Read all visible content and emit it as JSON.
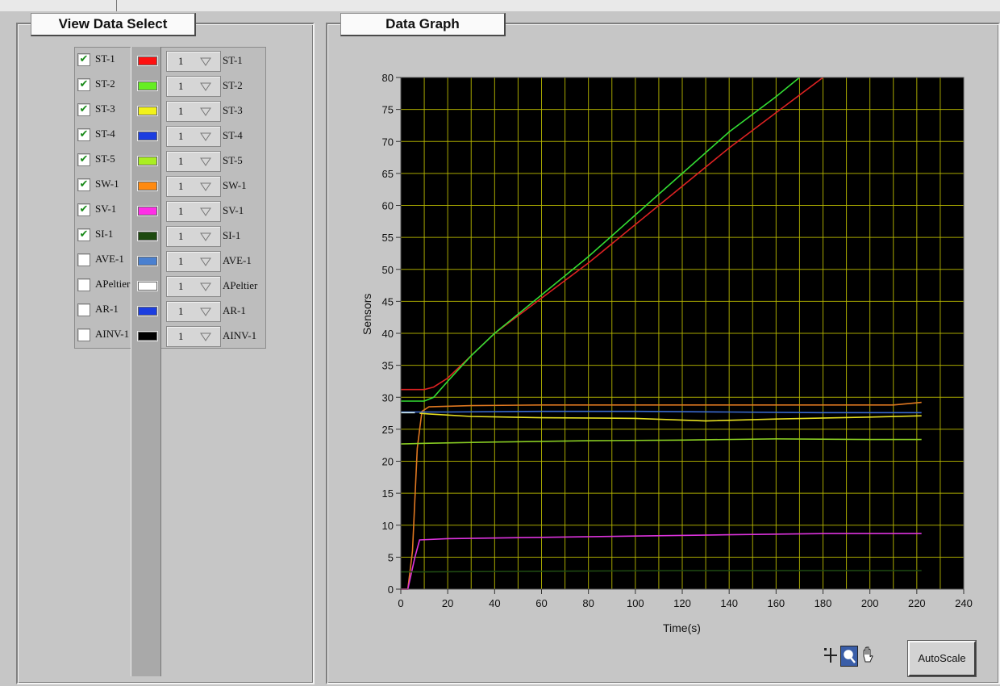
{
  "view_data_select": {
    "title": "View Data Select",
    "rows": [
      {
        "checked": true,
        "name": "ST-1",
        "color": "#ff1010",
        "multiplier": "1",
        "plot_label": "ST-1"
      },
      {
        "checked": true,
        "name": "ST-2",
        "color": "#66ee22",
        "multiplier": "1",
        "plot_label": "ST-2"
      },
      {
        "checked": true,
        "name": "ST-3",
        "color": "#f2f21a",
        "multiplier": "1",
        "plot_label": "ST-3"
      },
      {
        "checked": true,
        "name": "ST-4",
        "color": "#1c3ee0",
        "multiplier": "1",
        "plot_label": "ST-4"
      },
      {
        "checked": true,
        "name": "ST-5",
        "color": "#aaee22",
        "multiplier": "1",
        "plot_label": "ST-5"
      },
      {
        "checked": true,
        "name": "SW-1",
        "color": "#ff8a10",
        "multiplier": "1",
        "plot_label": "SW-1"
      },
      {
        "checked": true,
        "name": "SV-1",
        "color": "#ff2ee6",
        "multiplier": "1",
        "plot_label": "SV-1"
      },
      {
        "checked": true,
        "name": "SI-1",
        "color": "#1e4a10",
        "multiplier": "1",
        "plot_label": "SI-1"
      },
      {
        "checked": false,
        "name": "AVE-1",
        "color": "#4a80d0",
        "multiplier": "1",
        "plot_label": "AVE-1"
      },
      {
        "checked": false,
        "name": "APeltier",
        "color": "#ffffff",
        "multiplier": "1",
        "plot_label": "APeltier"
      },
      {
        "checked": false,
        "name": "AR-1",
        "color": "#1c3ee0",
        "multiplier": "1",
        "plot_label": "AR-1"
      },
      {
        "checked": false,
        "name": "AINV-1",
        "color": "#000000",
        "multiplier": "1",
        "plot_label": "AINV-1"
      }
    ]
  },
  "data_graph": {
    "title": "Data Graph",
    "autoscale_label": "AutoScale",
    "tools": [
      "cursor-move-icon",
      "zoom-icon",
      "pan-hand-icon"
    ]
  },
  "chart_data": {
    "type": "line",
    "xlabel": "Time(s)",
    "ylabel": "Sensors",
    "xlim": [
      0,
      240
    ],
    "ylim": [
      0,
      80
    ],
    "xticks": [
      0,
      20,
      40,
      60,
      80,
      100,
      120,
      140,
      160,
      180,
      200,
      220,
      240
    ],
    "yticks": [
      0,
      5,
      10,
      15,
      20,
      25,
      30,
      35,
      40,
      45,
      50,
      55,
      60,
      65,
      70,
      75,
      80
    ],
    "grid": true,
    "background": "#000000",
    "grid_color": "#b8b800",
    "series": [
      {
        "color": "#dd2222",
        "x": [
          0,
          10,
          14,
          20,
          30,
          40,
          60,
          80,
          100,
          120,
          140,
          160,
          180
        ],
        "y": [
          31.2,
          31.2,
          31.6,
          33,
          36.5,
          40,
          45.5,
          51,
          57,
          63,
          69,
          74.5,
          80
        ]
      },
      {
        "color": "#33dd33",
        "x": [
          0,
          10,
          14,
          20,
          30,
          40,
          60,
          80,
          100,
          120,
          140,
          160,
          170
        ],
        "y": [
          29.4,
          29.4,
          30,
          32.5,
          36.5,
          40,
          46,
          52,
          58.5,
          65,
          71.5,
          77,
          80
        ]
      },
      {
        "color": "#e07820",
        "x": [
          0,
          3,
          5,
          7,
          9,
          12,
          30,
          60,
          100,
          140,
          180,
          210,
          222
        ],
        "y": [
          0,
          0,
          6,
          22,
          27.8,
          28.5,
          28.7,
          28.8,
          28.8,
          28.8,
          28.8,
          28.8,
          29.2
        ]
      },
      {
        "color": "#3a6ad0",
        "x": [
          0,
          7,
          20,
          60,
          100,
          140,
          180,
          222
        ],
        "y": [
          27.7,
          27.7,
          27.7,
          27.8,
          27.8,
          27.7,
          27.6,
          27.6
        ]
      },
      {
        "color": "#e8e020",
        "x": [
          8,
          12,
          30,
          60,
          100,
          130,
          160,
          200,
          222
        ],
        "y": [
          27.5,
          27.4,
          27.0,
          26.8,
          26.7,
          26.3,
          26.6,
          26.9,
          27.1
        ]
      },
      {
        "color": "#cfe8e8",
        "x": [
          0,
          6
        ],
        "y": [
          27.6,
          27.6
        ]
      },
      {
        "color": "#88cc22",
        "x": [
          0,
          10,
          40,
          80,
          120,
          160,
          200,
          222
        ],
        "y": [
          22.7,
          22.8,
          23.0,
          23.2,
          23.3,
          23.5,
          23.4,
          23.4
        ]
      },
      {
        "color": "#dd33dd",
        "x": [
          0,
          3,
          6,
          8,
          20,
          60,
          100,
          140,
          180,
          222
        ],
        "y": [
          0,
          0,
          5,
          7.7,
          7.9,
          8.1,
          8.3,
          8.5,
          8.7,
          8.7
        ]
      },
      {
        "color": "#1f4a12",
        "x": [
          0,
          10,
          60,
          120,
          180,
          222
        ],
        "y": [
          2.7,
          2.7,
          2.8,
          2.9,
          2.9,
          2.9
        ]
      }
    ]
  }
}
